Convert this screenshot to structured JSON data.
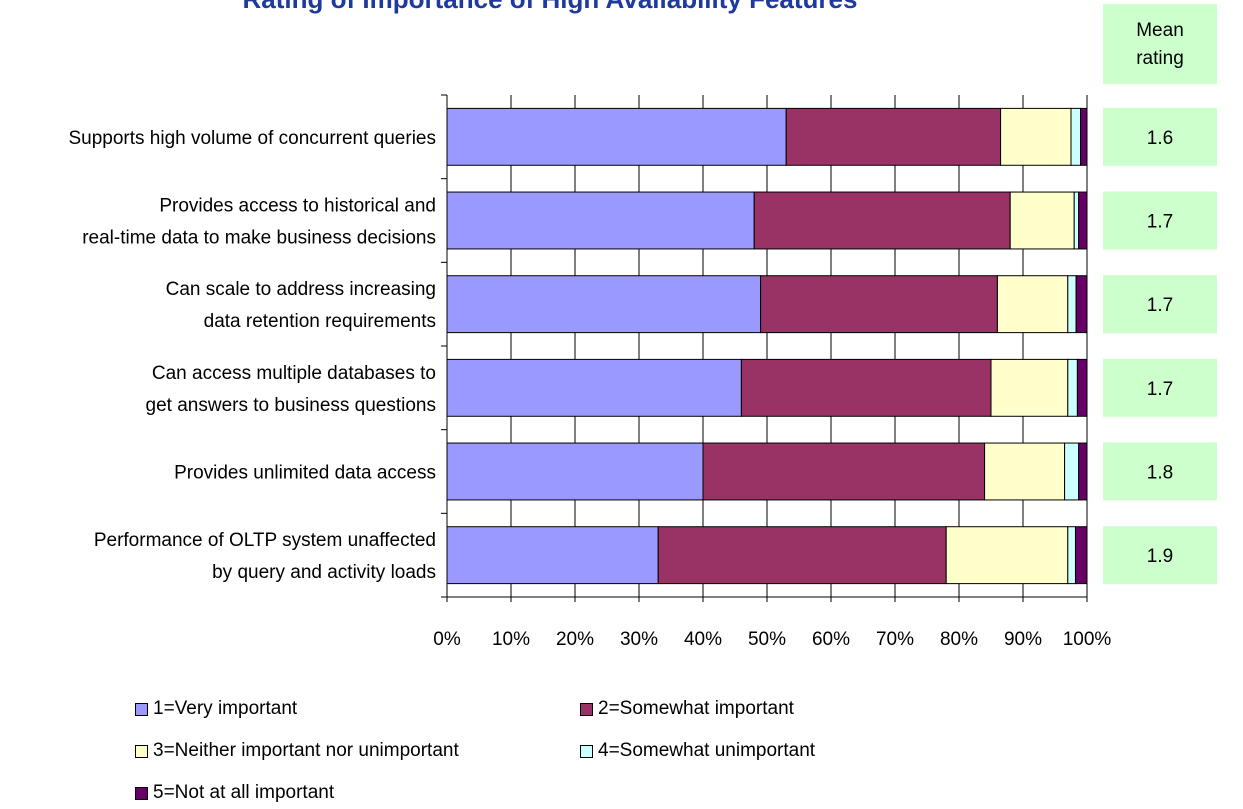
{
  "chart_data": {
    "type": "bar",
    "orientation": "horizontal",
    "stacked": "percent",
    "title": "Rating of Importance of High Availability Features",
    "categories": [
      [
        "Supports high volume of concurrent queries"
      ],
      [
        "Provides access to historical and",
        "real-time data to make business decisions"
      ],
      [
        "Can scale to address increasing",
        "data retention requirements"
      ],
      [
        "Can access multiple databases to",
        "get answers to business questions"
      ],
      [
        "Provides unlimited data access"
      ],
      [
        "Performance of OLTP system unaffected",
        "by query and activity loads"
      ]
    ],
    "series": [
      {
        "name": "1=Very important",
        "color": "#9999ff",
        "values": [
          53,
          48,
          49,
          46,
          40,
          33
        ]
      },
      {
        "name": "2=Somewhat important",
        "color": "#993366",
        "values": [
          33.5,
          40,
          37,
          39,
          44,
          45
        ]
      },
      {
        "name": "3=Neither important nor unimportant",
        "color": "#ffffcc",
        "values": [
          11,
          10,
          11,
          12,
          12.5,
          19
        ]
      },
      {
        "name": "4=Somewhat unimportant",
        "color": "#ccffff",
        "values": [
          1.5,
          0.7,
          1.3,
          1.5,
          2.2,
          1.2
        ]
      },
      {
        "name": "5=Not at all important",
        "color": "#660066",
        "values": [
          1,
          1.3,
          1.7,
          1.5,
          1.3,
          1.8
        ]
      }
    ],
    "xlim": [
      0,
      100
    ],
    "x_ticks": [
      "0%",
      "10%",
      "20%",
      "30%",
      "40%",
      "50%",
      "60%",
      "70%",
      "80%",
      "90%",
      "100%"
    ],
    "grid": "vertical",
    "legend_position": "bottom",
    "mean_rating": {
      "header": [
        "Mean",
        "rating"
      ],
      "values": [
        "1.6",
        "1.7",
        "1.7",
        "1.7",
        "1.8",
        "1.9"
      ],
      "color": "#ccffcc"
    }
  }
}
